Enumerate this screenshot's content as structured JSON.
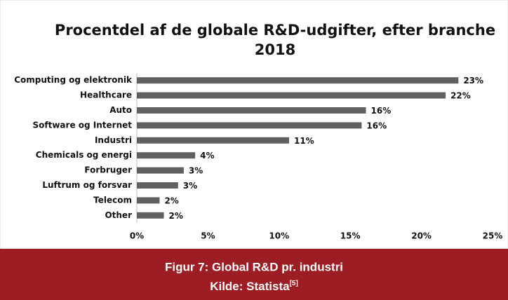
{
  "chart_data": {
    "type": "bar",
    "orientation": "horizontal",
    "title": "Procentdel af de globale R&D-udgifter, efter branche",
    "subtitle": "2018",
    "categories": [
      "Computing og elektronik",
      "Healthcare",
      "Auto",
      "Software og Internet",
      "Industri",
      "Chemicals og energi",
      "Forbruger",
      "Luftrum og forsvar",
      "Telecom",
      "Other"
    ],
    "values": [
      22.6,
      21.7,
      16.1,
      15.8,
      10.7,
      4.1,
      3.3,
      2.9,
      1.6,
      1.9
    ],
    "value_labels": [
      "23%",
      "22%",
      "16%",
      "16%",
      "11%",
      "4%",
      "3%",
      "3%",
      "2%",
      "2%"
    ],
    "color": "#606060",
    "xlim": [
      0,
      25
    ],
    "xticks": [
      {
        "value": 0,
        "label": "0%"
      },
      {
        "value": 5,
        "label": "5%"
      },
      {
        "value": 10,
        "label": "10%"
      },
      {
        "value": 15,
        "label": "15%"
      },
      {
        "value": 20,
        "label": "20%"
      },
      {
        "value": 25,
        "label": "25%"
      }
    ],
    "grid": false
  },
  "caption": {
    "figure": "Figur 7: Global R&D pr. industri",
    "source": "Kilde: Statista",
    "reference": "[5]"
  }
}
